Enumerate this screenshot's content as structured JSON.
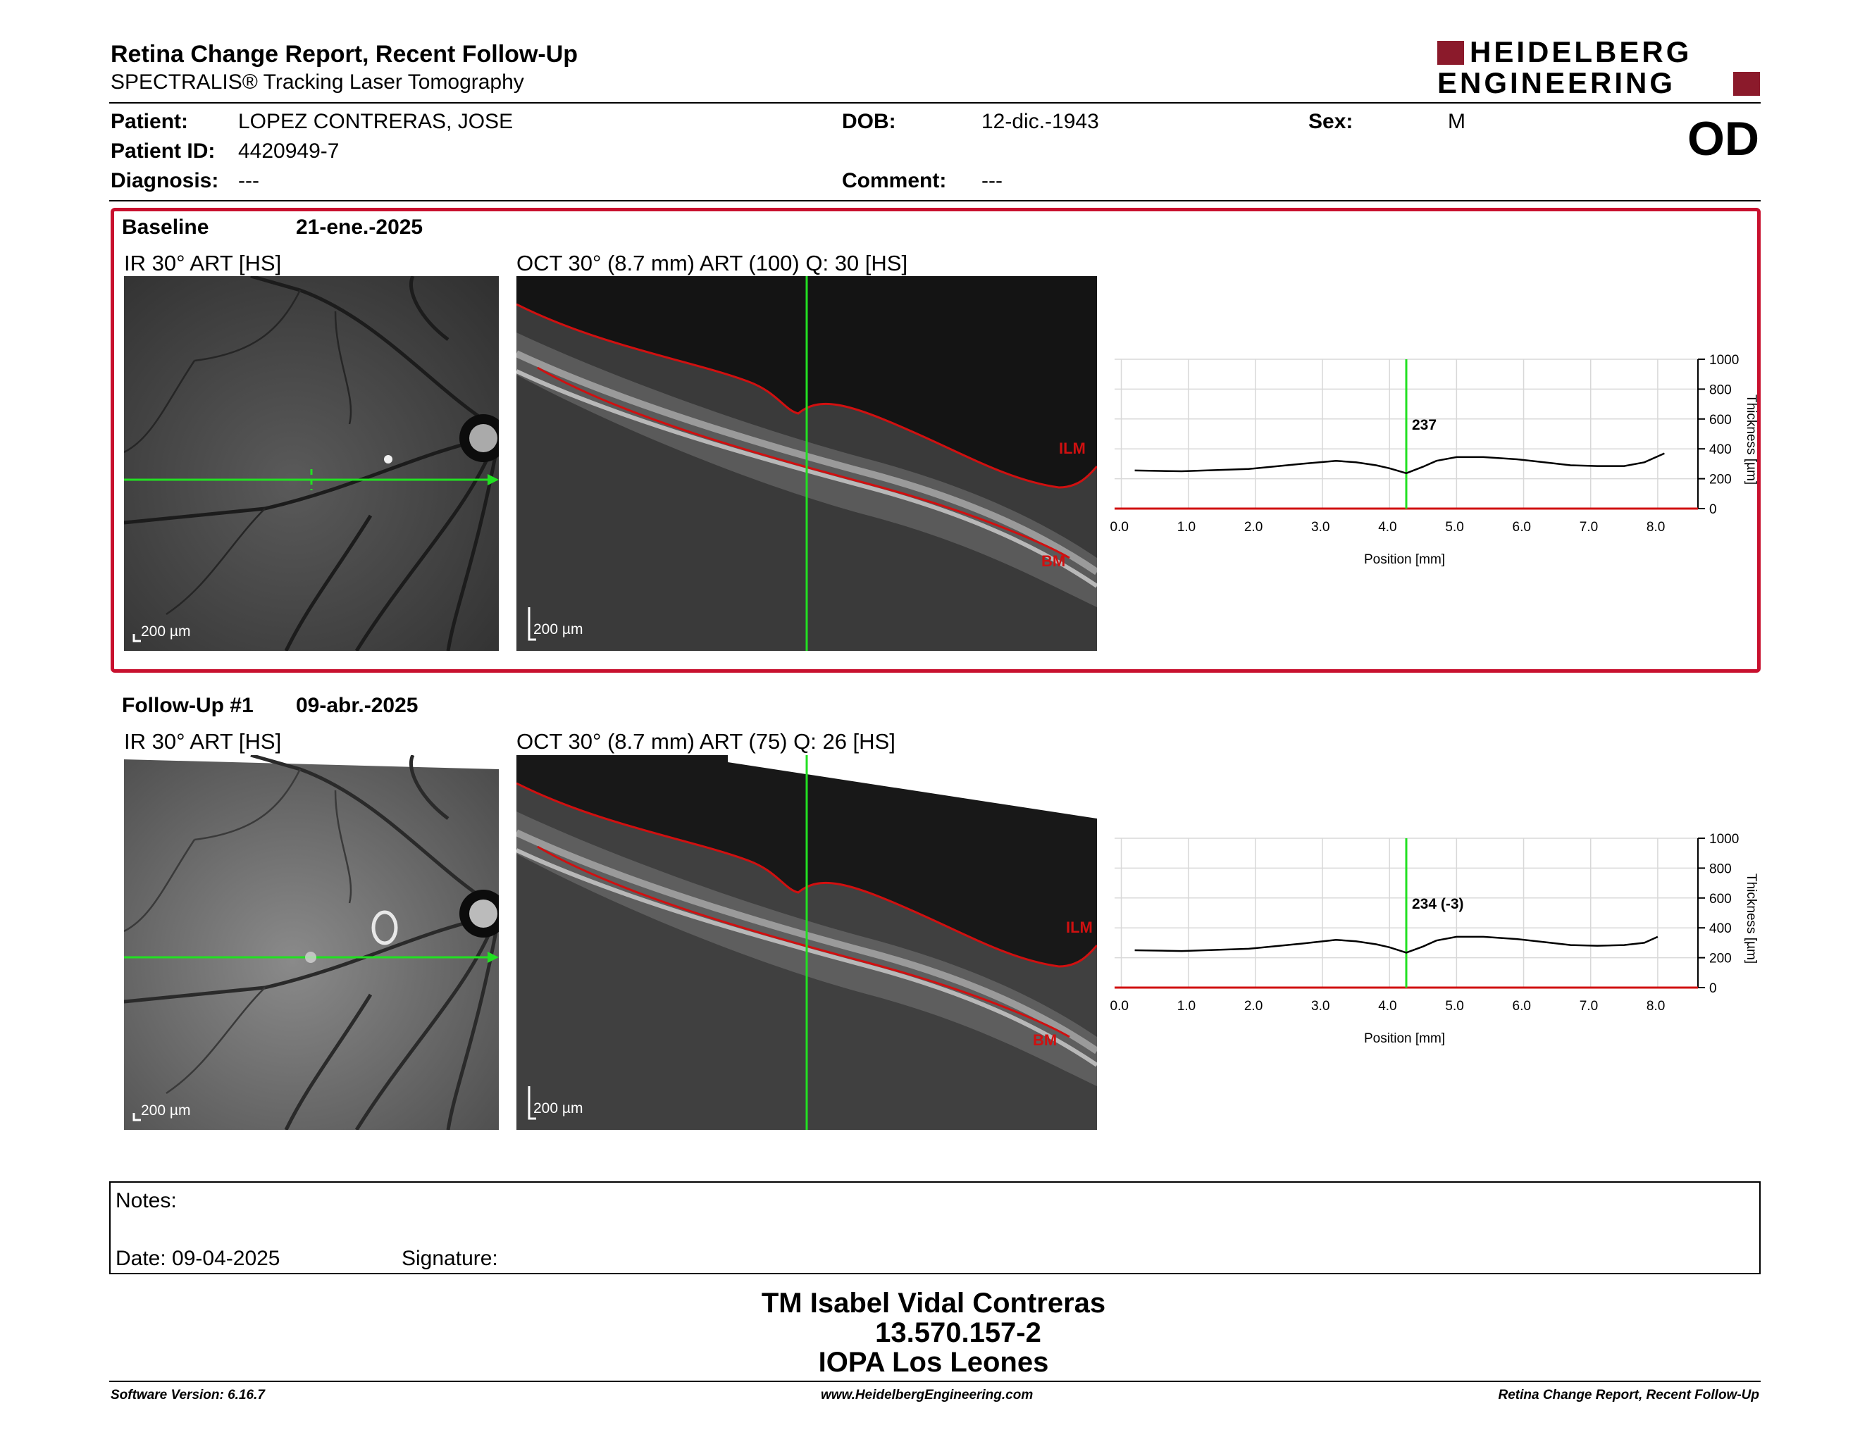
{
  "header": {
    "title": "Retina Change Report, Recent Follow-Up",
    "subtitle": "SPECTRALIS® Tracking Laser Tomography",
    "logo_line1": "HEIDELBERG",
    "logo_line2": "ENGINEERING",
    "eye": "OD"
  },
  "patient": {
    "patient_label": "Patient:",
    "patient_value": "LOPEZ CONTRERAS, JOSE",
    "id_label": "Patient ID:",
    "id_value": "4420949-7",
    "diagnosis_label": "Diagnosis:",
    "diagnosis_value": "---",
    "dob_label": "DOB:",
    "dob_value": "12-dic.-1943",
    "comment_label": "Comment:",
    "comment_value": "---",
    "sex_label": "Sex:",
    "sex_value": "M"
  },
  "baseline": {
    "title": "Baseline",
    "date": "21-ene.-2025",
    "ir_label": "IR 30° ART [HS]",
    "oct_label": "OCT 30° (8.7 mm) ART (100) Q: 30 [HS]",
    "scale_ir": "200 µm",
    "scale_oct": "200 µm",
    "ilm": "ILM",
    "bm": "BM",
    "thickness_value": "237"
  },
  "followup": {
    "title": "Follow-Up #1",
    "date": "09-abr.-2025",
    "ir_label": "IR 30° ART [HS]",
    "oct_label": "OCT 30° (8.7 mm) ART (75) Q: 26 [HS]",
    "scale_ir": "200 µm",
    "scale_oct": "200 µm",
    "ilm": "ILM",
    "bm": "BM",
    "thickness_value": "234 (-3)"
  },
  "chart_data": [
    {
      "type": "line",
      "xlabel": "Position [mm]",
      "ylabel": "Thickness [µm]",
      "xlim": [
        0,
        8.7
      ],
      "ylim": [
        0,
        1000
      ],
      "xticks": [
        "0.0",
        "1.0",
        "2.0",
        "3.0",
        "4.0",
        "5.0",
        "6.0",
        "7.0",
        "8.0"
      ],
      "yticks": [
        "0",
        "200",
        "400",
        "600",
        "800",
        "1000"
      ],
      "marker_x": 4.35,
      "annotation": "237",
      "x": [
        0.3,
        1.0,
        2.0,
        2.8,
        3.3,
        3.6,
        3.9,
        4.1,
        4.35,
        4.6,
        4.8,
        5.1,
        5.5,
        6.0,
        6.5,
        6.8,
        7.2,
        7.6,
        7.9,
        8.2
      ],
      "values": [
        255,
        250,
        265,
        300,
        320,
        310,
        290,
        270,
        237,
        280,
        320,
        345,
        345,
        330,
        305,
        290,
        285,
        285,
        310,
        370
      ]
    },
    {
      "type": "line",
      "xlabel": "Position [mm]",
      "ylabel": "Thickness [µm]",
      "xlim": [
        0,
        8.7
      ],
      "ylim": [
        0,
        1000
      ],
      "xticks": [
        "0.0",
        "1.0",
        "2.0",
        "3.0",
        "4.0",
        "5.0",
        "6.0",
        "7.0",
        "8.0"
      ],
      "yticks": [
        "0",
        "200",
        "400",
        "600",
        "800",
        "1000"
      ],
      "marker_x": 4.35,
      "annotation": "234 (-3)",
      "x": [
        0.3,
        1.0,
        2.0,
        2.8,
        3.3,
        3.6,
        3.9,
        4.1,
        4.35,
        4.6,
        4.8,
        5.1,
        5.5,
        6.0,
        6.5,
        6.8,
        7.2,
        7.6,
        7.9,
        8.1
      ],
      "values": [
        250,
        245,
        260,
        295,
        320,
        310,
        290,
        270,
        234,
        275,
        315,
        340,
        340,
        325,
        300,
        285,
        280,
        285,
        300,
        340
      ]
    }
  ],
  "notes": {
    "notes_label": "Notes:",
    "date_label": "Date: 09-04-2025",
    "signature_label": "Signature:"
  },
  "signature": {
    "line1": "TM Isabel Vidal Contreras",
    "line2": "13.570.157-2",
    "line3": "IOPA Los Leones"
  },
  "footer": {
    "left": "Software Version: 6.16.7",
    "center": "www.HeidelbergEngineering.com",
    "right": "Retina Change Report, Recent Follow-Up"
  },
  "colors": {
    "accent": "#c8102e",
    "green": "#22e022",
    "red_line": "#d01010"
  }
}
